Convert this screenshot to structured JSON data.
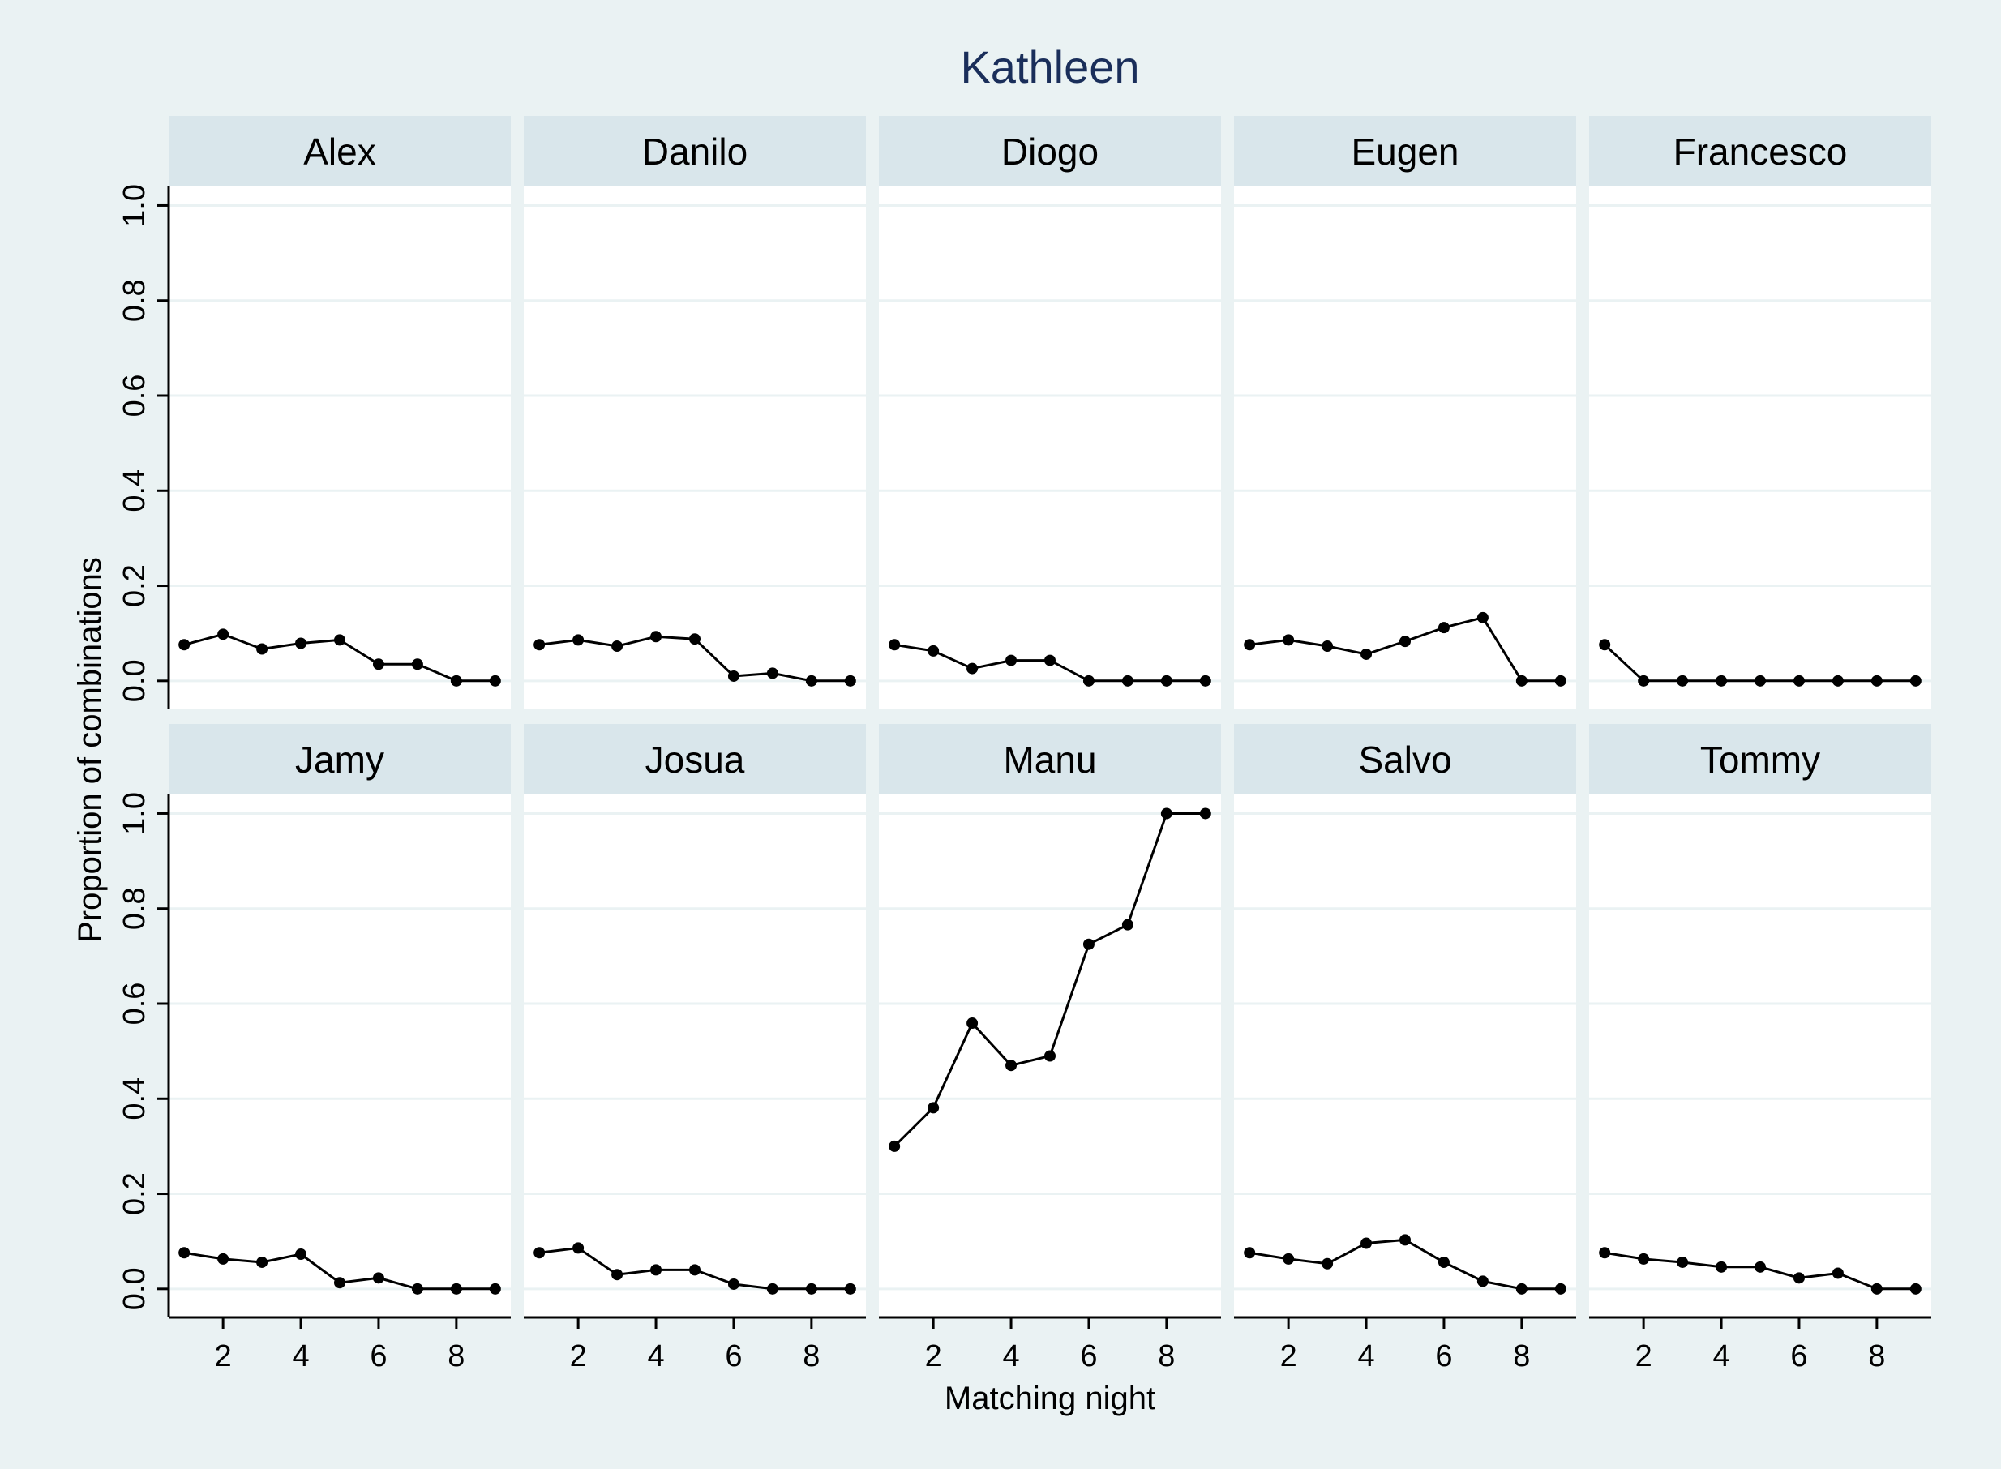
{
  "chart_data": {
    "type": "line",
    "title": "Kathleen",
    "xlabel": "Matching night",
    "ylabel": "Proportion of combinations",
    "x": [
      1,
      2,
      3,
      4,
      5,
      6,
      7,
      8,
      9
    ],
    "xticks": [
      "2",
      "4",
      "6",
      "8"
    ],
    "yticks": [
      "0.0",
      "0.2",
      "0.4",
      "0.6",
      "0.8",
      "1.0"
    ],
    "xlim": [
      0.6,
      9.4
    ],
    "ylim": [
      -0.06,
      1.04
    ],
    "grid": true,
    "panels": [
      {
        "name": "Alex",
        "values": [
          0.076,
          0.098,
          0.067,
          0.079,
          0.086,
          0.035,
          0.035,
          0.0,
          0.0
        ]
      },
      {
        "name": "Danilo",
        "values": [
          0.076,
          0.086,
          0.073,
          0.093,
          0.088,
          0.01,
          0.016,
          0.0,
          0.0
        ]
      },
      {
        "name": "Diogo",
        "values": [
          0.076,
          0.063,
          0.026,
          0.043,
          0.043,
          0.0,
          0.0,
          0.0,
          0.0
        ]
      },
      {
        "name": "Eugen",
        "values": [
          0.076,
          0.086,
          0.073,
          0.056,
          0.083,
          0.112,
          0.133,
          0.0,
          0.0
        ]
      },
      {
        "name": "Francesco",
        "values": [
          0.076,
          0.0,
          0.0,
          0.0,
          0.0,
          0.0,
          0.0,
          0.0,
          0.0
        ]
      },
      {
        "name": "Jamy",
        "values": [
          0.076,
          0.063,
          0.056,
          0.073,
          0.013,
          0.023,
          0.0,
          0.0,
          0.0
        ]
      },
      {
        "name": "Josua",
        "values": [
          0.076,
          0.086,
          0.03,
          0.04,
          0.04,
          0.01,
          0.0,
          0.0,
          0.0
        ]
      },
      {
        "name": "Manu",
        "values": [
          0.3,
          0.381,
          0.559,
          0.47,
          0.49,
          0.725,
          0.766,
          1.0,
          1.0
        ]
      },
      {
        "name": "Salvo",
        "values": [
          0.076,
          0.063,
          0.053,
          0.096,
          0.103,
          0.056,
          0.016,
          0.0,
          0.0
        ]
      },
      {
        "name": "Tommy",
        "values": [
          0.076,
          0.063,
          0.056,
          0.046,
          0.046,
          0.023,
          0.033,
          0.0,
          0.0
        ]
      }
    ],
    "colors": {
      "background": "#eaf2f3",
      "panel_header": "#d9e6eb",
      "plot": "#ffffff",
      "grid": "#eaf2f3",
      "title": "#1a2e5a",
      "line": "#000000"
    }
  }
}
